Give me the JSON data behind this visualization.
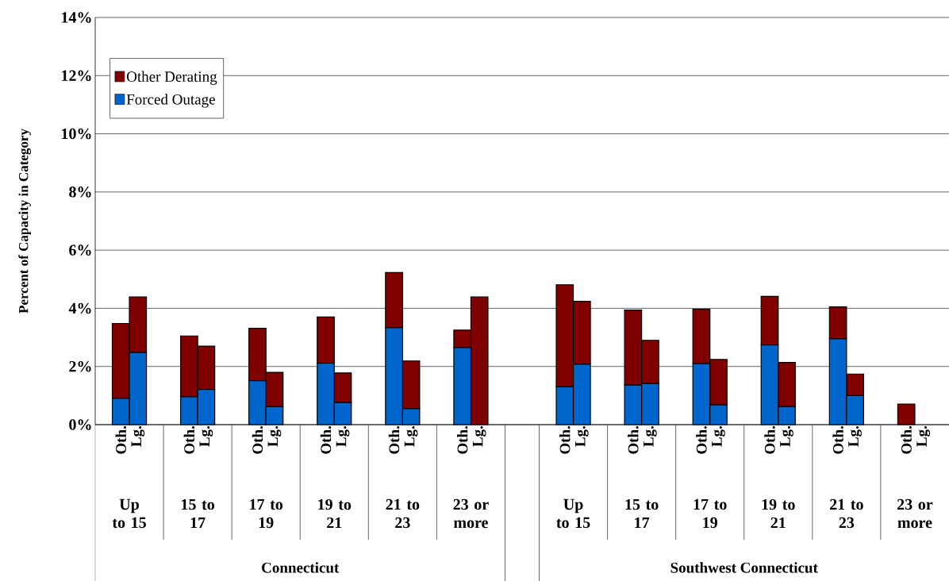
{
  "chart_data": {
    "type": "bar",
    "stacked": true,
    "ylabel": "Percent of Capacity in Category",
    "categories": [
      "Oth.",
      "Lg.",
      "Oth.",
      "Lg.",
      "Oth.",
      "Lg.",
      "Oth.",
      "Lg.",
      "Oth.",
      "Lg.",
      "Oth.",
      "Lg.",
      null,
      "Oth.",
      "Lg.",
      "Oth.",
      "Lg.",
      "Oth.",
      "Lg.",
      "Oth.",
      "Lg.",
      "Oth.",
      "Lg.",
      "Oth.",
      "Lg."
    ],
    "series": [
      {
        "name": "Forced Outage",
        "color": "#0066cc",
        "values": [
          0.9,
          2.48,
          0.96,
          1.21,
          1.51,
          0.62,
          2.11,
          0.76,
          3.33,
          0.55,
          2.65,
          0,
          null,
          1.3,
          2.08,
          1.36,
          1.41,
          2.1,
          0.68,
          2.74,
          0.62,
          2.95,
          1.0,
          0,
          0
        ]
      },
      {
        "name": "Other Derating",
        "color": "#800000",
        "values": [
          2.58,
          1.91,
          2.09,
          1.49,
          1.8,
          1.18,
          1.59,
          1.02,
          1.9,
          1.64,
          0.6,
          4.39,
          null,
          3.51,
          2.16,
          2.58,
          1.49,
          1.87,
          1.56,
          1.67,
          1.52,
          1.1,
          0.74,
          0.71,
          0
        ]
      }
    ],
    "ylim": [
      0,
      14
    ],
    "yticks": [
      {
        "value": 0,
        "label": "0%"
      },
      {
        "value": 2,
        "label": "2%"
      },
      {
        "value": 4,
        "label": "4%"
      },
      {
        "value": 6,
        "label": "6%"
      },
      {
        "value": 8,
        "label": "8%"
      },
      {
        "value": 10,
        "label": "10%"
      },
      {
        "value": 12,
        "label": "12%"
      },
      {
        "value": 14,
        "label": "14%"
      }
    ],
    "grid": "y",
    "legend": "top left",
    "annotations": [
      "Up to 15",
      "15 to 17",
      "17 to 19",
      "19 to 21",
      "21 to 23",
      "23 or more",
      "Up to 15",
      "15 to 17",
      "17 to 19",
      "19 to 21",
      "21 to 23",
      "23 or more",
      "Connecticut",
      "Southwest Connecticut"
    ]
  }
}
